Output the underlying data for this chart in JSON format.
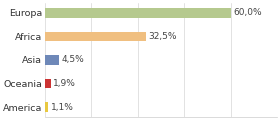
{
  "categories": [
    "Europa",
    "Africa",
    "Asia",
    "Oceania",
    "America"
  ],
  "values": [
    60.0,
    32.5,
    4.5,
    1.9,
    1.1
  ],
  "labels": [
    "60,0%",
    "32,5%",
    "4,5%",
    "1,9%",
    "1,1%"
  ],
  "colors": [
    "#b5c98e",
    "#f0bf80",
    "#6e88b8",
    "#cc3333",
    "#e8c840"
  ],
  "background_color": "#ffffff",
  "label_fontsize": 6.5,
  "tick_fontsize": 6.8,
  "xlim": 75,
  "bar_height": 0.42
}
